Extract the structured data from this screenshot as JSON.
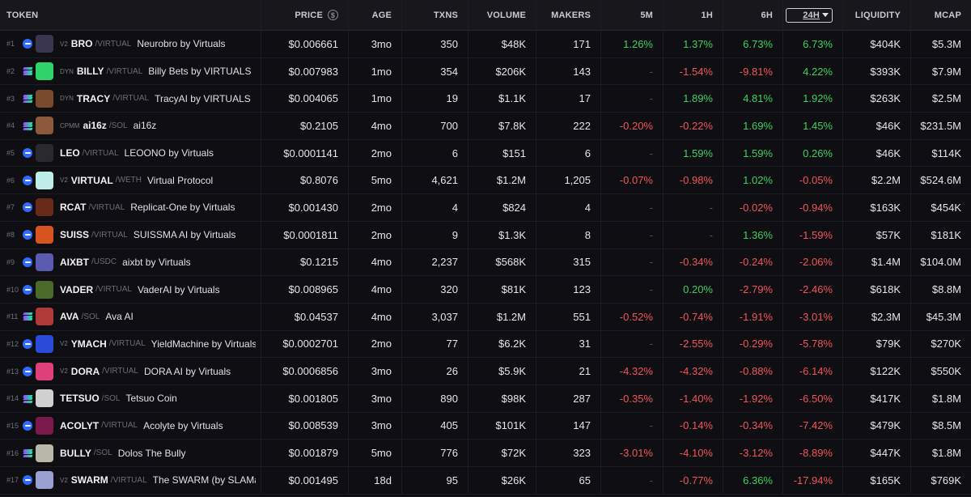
{
  "columns": {
    "token": "TOKEN",
    "price": "PRICE",
    "age": "AGE",
    "txns": "TXNS",
    "volume": "VOLUME",
    "makers": "MAKERS",
    "m5": "5M",
    "h1": "1H",
    "h6": "6H",
    "h24": "24H",
    "liquidity": "LIQUIDITY",
    "mcap": "MCAP"
  },
  "colors": {
    "positive": "#3fd05f",
    "negative": "#f0555a",
    "base_chain": "#2f6bff",
    "solana_gradient": [
      "#9945ff",
      "#14f195"
    ]
  },
  "rows": [
    {
      "rank": "#1",
      "chain": "base",
      "dex": "V2",
      "symbol": "BRO",
      "pair": "/VIRTUAL",
      "name": "Neurobro by Virtuals",
      "avatar": "#3a3550",
      "price": "$0.006661",
      "age": "3mo",
      "txns": "350",
      "volume": "$48K",
      "makers": "171",
      "m5": "1.26%",
      "h1": "1.37%",
      "h6": "6.73%",
      "h24": "6.73%",
      "liquidity": "$404K",
      "mcap": "$5.3M"
    },
    {
      "rank": "#2",
      "chain": "solana",
      "dex": "DYN",
      "symbol": "BILLY",
      "pair": "/VIRTUAL",
      "name": "Billy Bets by VIRTUALS",
      "avatar": "#2fd36a",
      "price": "$0.007983",
      "age": "1mo",
      "txns": "354",
      "volume": "$206K",
      "makers": "143",
      "m5": "-",
      "h1": "-1.54%",
      "h6": "-9.81%",
      "h24": "4.22%",
      "liquidity": "$393K",
      "mcap": "$7.9M"
    },
    {
      "rank": "#3",
      "chain": "solana",
      "dex": "DYN",
      "symbol": "TRACY",
      "pair": "/VIRTUAL",
      "name": "TracyAI by VIRTUALS",
      "avatar": "#7a4a2c",
      "price": "$0.004065",
      "age": "1mo",
      "txns": "19",
      "volume": "$1.1K",
      "makers": "17",
      "m5": "-",
      "h1": "1.89%",
      "h6": "4.81%",
      "h24": "1.92%",
      "liquidity": "$263K",
      "mcap": "$2.5M"
    },
    {
      "rank": "#4",
      "chain": "solana",
      "dex": "CPMM",
      "symbol": "ai16z",
      "pair": "/SOL",
      "name": "ai16z",
      "avatar": "#8a5a3a",
      "price": "$0.2105",
      "age": "4mo",
      "txns": "700",
      "volume": "$7.8K",
      "makers": "222",
      "m5": "-0.20%",
      "h1": "-0.22%",
      "h6": "1.69%",
      "h24": "1.45%",
      "liquidity": "$46K",
      "mcap": "$231.5M"
    },
    {
      "rank": "#5",
      "chain": "base",
      "dex": "",
      "symbol": "LEO",
      "pair": "/VIRTUAL",
      "name": "LEOONO by Virtuals",
      "avatar": "#2a2a2e",
      "price": "$0.0001141",
      "age": "2mo",
      "txns": "6",
      "volume": "$151",
      "makers": "6",
      "m5": "-",
      "h1": "1.59%",
      "h6": "1.59%",
      "h24": "0.26%",
      "liquidity": "$46K",
      "mcap": "$114K"
    },
    {
      "rank": "#6",
      "chain": "base",
      "dex": "V2",
      "symbol": "VIRTUAL",
      "pair": "/WETH",
      "name": "Virtual Protocol",
      "avatar": "#bfeee8",
      "price": "$0.8076",
      "age": "5mo",
      "txns": "4,621",
      "volume": "$1.2M",
      "makers": "1,205",
      "m5": "-0.07%",
      "h1": "-0.98%",
      "h6": "1.02%",
      "h24": "-0.05%",
      "liquidity": "$2.2M",
      "mcap": "$524.6M"
    },
    {
      "rank": "#7",
      "chain": "base",
      "dex": "",
      "symbol": "RCAT",
      "pair": "/VIRTUAL",
      "name": "Replicat-One by Virtuals",
      "avatar": "#6a2a1a",
      "price": "$0.001430",
      "age": "2mo",
      "txns": "4",
      "volume": "$824",
      "makers": "4",
      "m5": "-",
      "h1": "-",
      "h6": "-0.02%",
      "h24": "-0.94%",
      "liquidity": "$163K",
      "mcap": "$454K"
    },
    {
      "rank": "#8",
      "chain": "base",
      "dex": "",
      "symbol": "SUISS",
      "pair": "/VIRTUAL",
      "name": "SUISSMA AI by Virtuals",
      "avatar": "#d8541f",
      "price": "$0.0001811",
      "age": "2mo",
      "txns": "9",
      "volume": "$1.3K",
      "makers": "8",
      "m5": "-",
      "h1": "-",
      "h6": "1.36%",
      "h24": "-1.59%",
      "liquidity": "$57K",
      "mcap": "$181K"
    },
    {
      "rank": "#9",
      "chain": "base",
      "dex": "",
      "symbol": "AIXBT",
      "pair": "/USDC",
      "name": "aixbt by Virtuals",
      "avatar": "#5a5ab0",
      "price": "$0.1215",
      "age": "4mo",
      "txns": "2,237",
      "volume": "$568K",
      "makers": "315",
      "m5": "-",
      "h1": "-0.34%",
      "h6": "-0.24%",
      "h24": "-2.06%",
      "liquidity": "$1.4M",
      "mcap": "$104.0M"
    },
    {
      "rank": "#10",
      "chain": "base",
      "dex": "",
      "symbol": "VADER",
      "pair": "/VIRTUAL",
      "name": "VaderAI by Virtuals",
      "avatar": "#4a6a2a",
      "price": "$0.008965",
      "age": "4mo",
      "txns": "320",
      "volume": "$81K",
      "makers": "123",
      "m5": "-",
      "h1": "0.20%",
      "h6": "-2.79%",
      "h24": "-2.46%",
      "liquidity": "$618K",
      "mcap": "$8.8M"
    },
    {
      "rank": "#11",
      "chain": "solana",
      "dex": "",
      "symbol": "AVA",
      "pair": "/SOL",
      "name": "Ava AI",
      "avatar": "#b03a3a",
      "price": "$0.04537",
      "age": "4mo",
      "txns": "3,037",
      "volume": "$1.2M",
      "makers": "551",
      "m5": "-0.52%",
      "h1": "-0.74%",
      "h6": "-1.91%",
      "h24": "-3.01%",
      "liquidity": "$2.3M",
      "mcap": "$45.3M"
    },
    {
      "rank": "#12",
      "chain": "base",
      "dex": "V2",
      "symbol": "YMACH",
      "pair": "/VIRTUAL",
      "name": "YieldMachine by Virtuals",
      "avatar": "#2a4ad8",
      "price": "$0.0002701",
      "age": "2mo",
      "txns": "77",
      "volume": "$6.2K",
      "makers": "31",
      "m5": "-",
      "h1": "-2.55%",
      "h6": "-0.29%",
      "h24": "-5.78%",
      "liquidity": "$79K",
      "mcap": "$270K"
    },
    {
      "rank": "#13",
      "chain": "base",
      "dex": "V2",
      "symbol": "DORA",
      "pair": "/VIRTUAL",
      "name": "DORA AI by Virtuals",
      "avatar": "#e0407a",
      "price": "$0.0006856",
      "age": "3mo",
      "txns": "26",
      "volume": "$5.9K",
      "makers": "21",
      "m5": "-4.32%",
      "h1": "-4.32%",
      "h6": "-0.88%",
      "h24": "-6.14%",
      "liquidity": "$122K",
      "mcap": "$550K"
    },
    {
      "rank": "#14",
      "chain": "solana",
      "dex": "",
      "symbol": "TETSUO",
      "pair": "/SOL",
      "name": "Tetsuo Coin",
      "avatar": "#d0d0d0",
      "price": "$0.001805",
      "age": "3mo",
      "txns": "890",
      "volume": "$98K",
      "makers": "287",
      "m5": "-0.35%",
      "h1": "-1.40%",
      "h6": "-1.92%",
      "h24": "-6.50%",
      "liquidity": "$417K",
      "mcap": "$1.8M"
    },
    {
      "rank": "#15",
      "chain": "base",
      "dex": "",
      "symbol": "ACOLYT",
      "pair": "/VIRTUAL",
      "name": "Acolyte by Virtuals",
      "avatar": "#7a1a4a",
      "price": "$0.008539",
      "age": "3mo",
      "txns": "405",
      "volume": "$101K",
      "makers": "147",
      "m5": "-",
      "h1": "-0.14%",
      "h6": "-0.34%",
      "h24": "-7.42%",
      "liquidity": "$479K",
      "mcap": "$8.5M"
    },
    {
      "rank": "#16",
      "chain": "solana",
      "dex": "",
      "symbol": "BULLY",
      "pair": "/SOL",
      "name": "Dolos The Bully",
      "avatar": "#b8b8a8",
      "price": "$0.001879",
      "age": "5mo",
      "txns": "776",
      "volume": "$72K",
      "makers": "323",
      "m5": "-3.01%",
      "h1": "-4.10%",
      "h6": "-3.12%",
      "h24": "-8.89%",
      "liquidity": "$447K",
      "mcap": "$1.8M"
    },
    {
      "rank": "#17",
      "chain": "base",
      "dex": "V2",
      "symbol": "SWARM",
      "pair": "/VIRTUAL",
      "name": "The SWARM (by SLAMai) by",
      "avatar": "#9aa0d0",
      "price": "$0.001495",
      "age": "18d",
      "txns": "95",
      "volume": "$26K",
      "makers": "65",
      "m5": "-",
      "h1": "-0.77%",
      "h6": "6.36%",
      "h24": "-17.94%",
      "liquidity": "$165K",
      "mcap": "$769K"
    }
  ]
}
